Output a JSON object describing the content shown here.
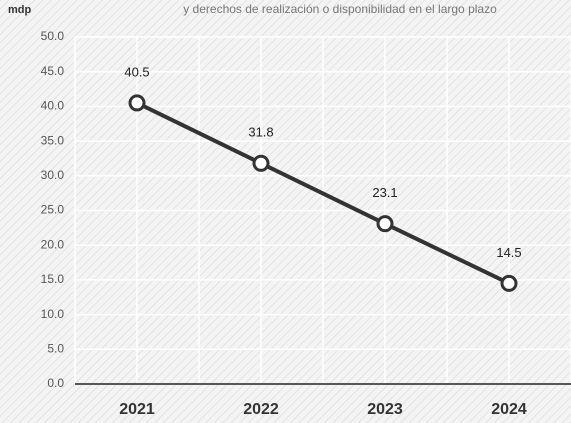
{
  "chart_data": {
    "type": "line",
    "subtitle": "y derechos de realización o disponibilidad en el largo plazo",
    "y_axis_label": "mdp",
    "categories": [
      "2021",
      "2022",
      "2023",
      "2024"
    ],
    "series": [
      {
        "name": "mdp",
        "color": "#333333",
        "values": [
          40.5,
          31.8,
          23.1,
          14.5
        ]
      }
    ],
    "ylim": [
      0,
      50
    ],
    "yticks": [
      {
        "value": 0,
        "label": "0.0"
      },
      {
        "value": 5,
        "label": "5.0"
      },
      {
        "value": 10,
        "label": "10.0"
      },
      {
        "value": 15,
        "label": "15.0"
      },
      {
        "value": 20,
        "label": "20.0"
      },
      {
        "value": 25,
        "label": "25.0"
      },
      {
        "value": 30,
        "label": "30.0"
      },
      {
        "value": 35,
        "label": "35.0"
      },
      {
        "value": 40,
        "label": "40.0"
      },
      {
        "value": 45,
        "label": "45.0"
      },
      {
        "value": 50,
        "label": "50.0"
      }
    ],
    "grid": true
  }
}
